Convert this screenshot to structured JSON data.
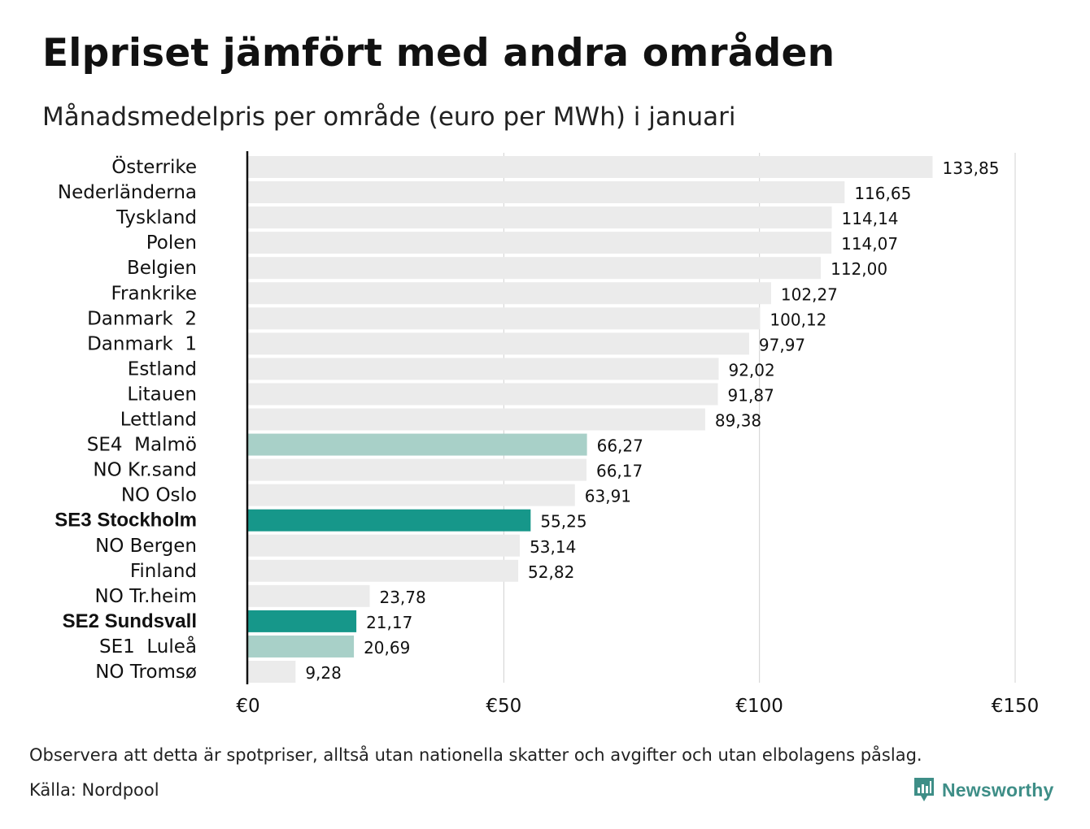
{
  "title": "Elpriset jämfört med andra områden",
  "subtitle": "Månadsmedelpris per område (euro per MWh) i januari",
  "footnote": "Observera att detta är spotpriser, alltså utan nationella skatter och avgifter och utan elbolagens påslag.",
  "source": "Källa: Nordpool",
  "brand": {
    "name": "Newsworthy",
    "logo_icon": "newsworthy-logo-icon",
    "color": "#3e8e87"
  },
  "colors": {
    "default_bar": "#ebebeb",
    "light_highlight": "#a8d0c8",
    "strong_highlight": "#16978a",
    "gridline": "#d0d0d0",
    "axis": "#111111"
  },
  "chart_data": {
    "type": "bar",
    "orientation": "horizontal",
    "xlim": [
      0,
      150
    ],
    "x_ticks": [
      0,
      50,
      100,
      150
    ],
    "x_tick_labels": [
      "€0",
      "€50",
      "€100",
      "€150"
    ],
    "grid": true,
    "legend": "none",
    "categories": [
      "Österrike",
      "Nederländerna",
      "Tyskland",
      "Polen",
      "Belgien",
      "Frankrike",
      "Danmark  2",
      "Danmark  1",
      "Estland",
      "Litauen",
      "Lettland",
      "SE4  Malmö",
      "NO Kr.sand",
      "NO Oslo",
      "SE3 Stockholm",
      "NO Bergen",
      "Finland",
      "NO Tr.heim",
      "SE2 Sundsvall",
      "SE1  Luleå",
      "NO Tromsø"
    ],
    "values": [
      133.85,
      116.65,
      114.14,
      114.07,
      112.0,
      102.27,
      100.12,
      97.97,
      92.02,
      91.87,
      89.38,
      66.27,
      66.17,
      63.91,
      55.25,
      53.14,
      52.82,
      23.78,
      21.17,
      20.69,
      9.28
    ],
    "value_labels": [
      "133,85",
      "116,65",
      "114,14",
      "114,07",
      "112,00",
      "102,27",
      "100,12",
      "97,97",
      "92,02",
      "91,87",
      "89,38",
      "66,27",
      "66,17",
      "63,91",
      "55,25",
      "53,14",
      "52,82",
      "23,78",
      "21,17",
      "20,69",
      "9,28"
    ],
    "highlight": [
      "none",
      "none",
      "none",
      "none",
      "none",
      "none",
      "none",
      "none",
      "none",
      "none",
      "none",
      "light",
      "none",
      "none",
      "strong",
      "none",
      "none",
      "none",
      "strong",
      "light",
      "none"
    ],
    "bold_labels": [
      "SE3 Stockholm",
      "SE2 Sundsvall"
    ]
  }
}
